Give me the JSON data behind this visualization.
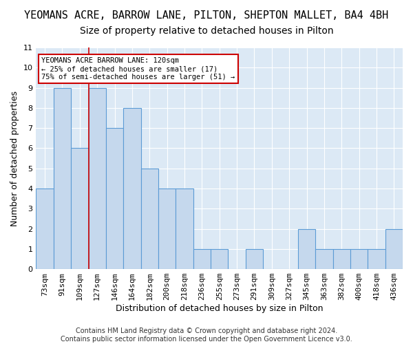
{
  "title": "YEOMANS ACRE, BARROW LANE, PILTON, SHEPTON MALLET, BA4 4BH",
  "subtitle": "Size of property relative to detached houses in Pilton",
  "xlabel": "Distribution of detached houses by size in Pilton",
  "ylabel": "Number of detached properties",
  "footnote": "Contains HM Land Registry data © Crown copyright and database right 2024.\nContains public sector information licensed under the Open Government Licence v3.0.",
  "categories": [
    "73sqm",
    "91sqm",
    "109sqm",
    "127sqm",
    "146sqm",
    "164sqm",
    "182sqm",
    "200sqm",
    "218sqm",
    "236sqm",
    "255sqm",
    "273sqm",
    "291sqm",
    "309sqm",
    "327sqm",
    "345sqm",
    "363sqm",
    "382sqm",
    "400sqm",
    "418sqm",
    "436sqm"
  ],
  "values": [
    4,
    9,
    6,
    9,
    7,
    8,
    5,
    4,
    4,
    1,
    1,
    0,
    1,
    0,
    0,
    2,
    1,
    1,
    1,
    1,
    2
  ],
  "bar_color": "#c5d8ed",
  "bar_edgecolor": "#5b9bd5",
  "bar_linewidth": 0.8,
  "vline_x": 2.5,
  "vline_color": "#cc0000",
  "annotation_text": "YEOMANS ACRE BARROW LANE: 120sqm\n← 25% of detached houses are smaller (17)\n75% of semi-detached houses are larger (51) →",
  "annotation_box_edgecolor": "#cc0000",
  "annotation_box_facecolor": "white",
  "ylim": [
    0,
    11
  ],
  "yticks": [
    0,
    1,
    2,
    3,
    4,
    5,
    6,
    7,
    8,
    9,
    10,
    11
  ],
  "title_fontsize": 11,
  "subtitle_fontsize": 10,
  "xlabel_fontsize": 9,
  "ylabel_fontsize": 9,
  "tick_fontsize": 8,
  "footnote_fontsize": 7,
  "background_color": "#dce9f5",
  "grid_color": "#ffffff",
  "fig_background": "#ffffff"
}
